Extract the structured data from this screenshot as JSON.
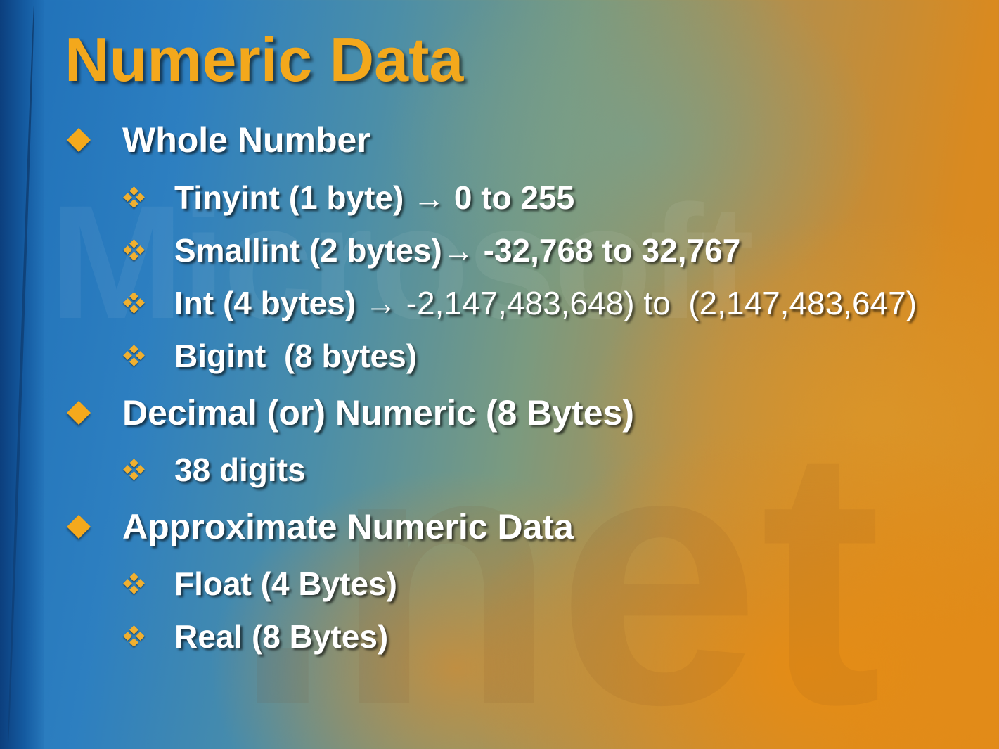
{
  "slide": {
    "title": "Numeric Data",
    "watermark_text": "Microsoft",
    "watermark_text_2": ".net",
    "colors": {
      "title": "#f3a81c",
      "bullet": "#f4a91c",
      "text": "#ffffff",
      "background_left": "#1e6fb8",
      "background_right": "#e08a1a"
    },
    "bullets": [
      {
        "label": "Whole Number",
        "items": [
          {
            "label": "Tinyint (1 byte)  → 0 to 255"
          },
          {
            "label": "Smallint (2 bytes)→ -32,768 to 32,767"
          },
          {
            "label": "Int (4 bytes) → ",
            "range": "-2,147,483,648) to  (2,147,483,647)"
          },
          {
            "label": "Bigint  (8 bytes)"
          }
        ]
      },
      {
        "label": "Decimal (or) Numeric (8 Bytes)",
        "items": [
          {
            "label": "38 digits"
          }
        ]
      },
      {
        "label": "Approximate Numeric Data",
        "items": [
          {
            "label": "Float (4 Bytes)"
          },
          {
            "label": "Real (8 Bytes)"
          }
        ]
      }
    ]
  }
}
